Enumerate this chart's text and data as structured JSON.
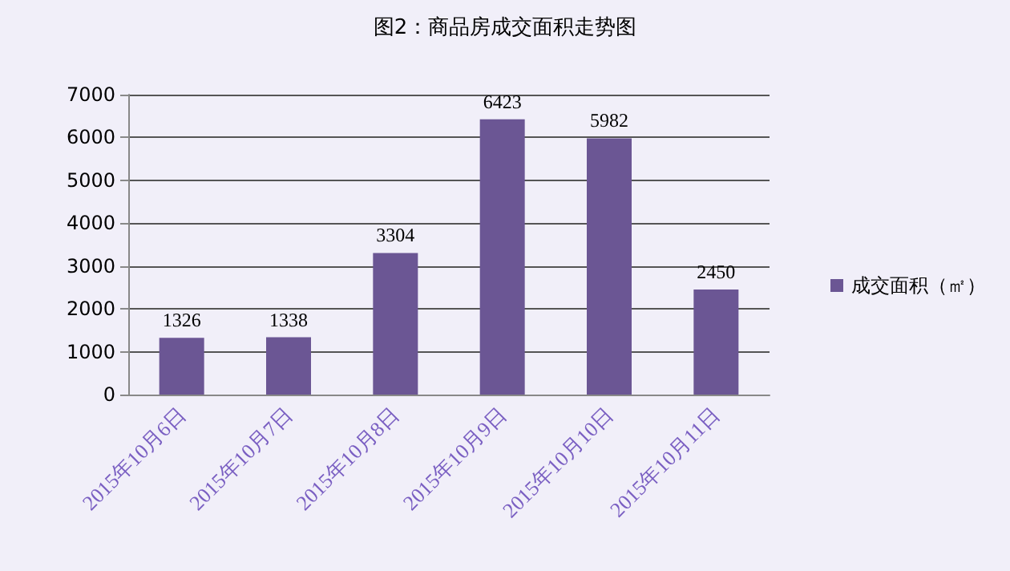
{
  "chart_data": {
    "type": "bar",
    "title": "图2：商品房成交面积走势图",
    "categories": [
      "2015年10月6日",
      "2015年10月7日",
      "2015年10月8日",
      "2015年10月9日",
      "2015年10月10日",
      "2015年10月11日"
    ],
    "series": [
      {
        "name": "成交面积（㎡）",
        "color": "#6b5694",
        "values": [
          1326,
          1338,
          3304,
          6423,
          5982,
          2450
        ]
      }
    ],
    "ylim": [
      0,
      7000
    ],
    "yticks": [
      0,
      1000,
      2000,
      3000,
      4000,
      5000,
      6000,
      7000
    ],
    "grid": "y",
    "legend": "right",
    "data_labels": true
  }
}
